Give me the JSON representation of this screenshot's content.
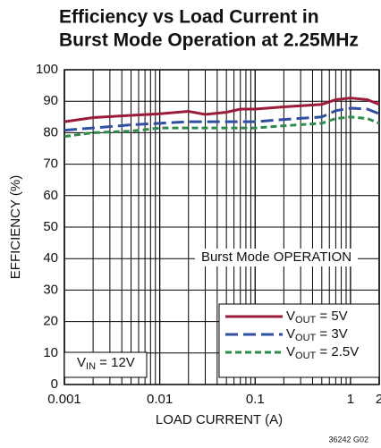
{
  "chart_data": {
    "type": "line",
    "title": [
      "Efficiency vs Load Current in",
      "Burst Mode Operation at 2.25MHz"
    ],
    "xlabel": "LOAD CURRENT (A)",
    "ylabel": "EFFICIENCY (%)",
    "x": [
      0.001,
      0.002,
      0.005,
      0.01,
      0.02,
      0.03,
      0.05,
      0.07,
      0.1,
      0.2,
      0.5,
      0.7,
      1,
      1.5,
      2
    ],
    "series": [
      {
        "name": "VOUT = 5V",
        "color": "#9b1b3a",
        "values": [
          83.5,
          84.8,
          85.5,
          86,
          86.8,
          85.8,
          86.5,
          87.5,
          87.5,
          88.2,
          89,
          90.5,
          91,
          90.5,
          89
        ]
      },
      {
        "name": "VOUT = 3V",
        "color": "#2f4f9f",
        "values": [
          80.8,
          81.5,
          82.5,
          83,
          83.5,
          83.5,
          83.5,
          83.5,
          83.5,
          84.2,
          85,
          87,
          87.8,
          87.5,
          86
        ]
      },
      {
        "name": "VOUT = 2.5V",
        "color": "#2e8b4a",
        "values": [
          78.8,
          80,
          80.5,
          81.5,
          81.5,
          81.5,
          81.5,
          81.5,
          81.5,
          82.2,
          83,
          84.5,
          85,
          84.5,
          83
        ]
      }
    ],
    "xscale": "log",
    "xlim": [
      0.001,
      2
    ],
    "xticks": [
      0.001,
      0.01,
      0.1,
      1,
      2
    ],
    "ylim": [
      0,
      100
    ],
    "yticks": [
      0,
      10,
      20,
      30,
      40,
      50,
      60,
      70,
      80,
      90,
      100
    ],
    "grid": true,
    "legend": "lower right",
    "annotations": [
      "Burst Mode OPERATION",
      "VIN = 12V"
    ],
    "footnote": "36242 G02"
  }
}
